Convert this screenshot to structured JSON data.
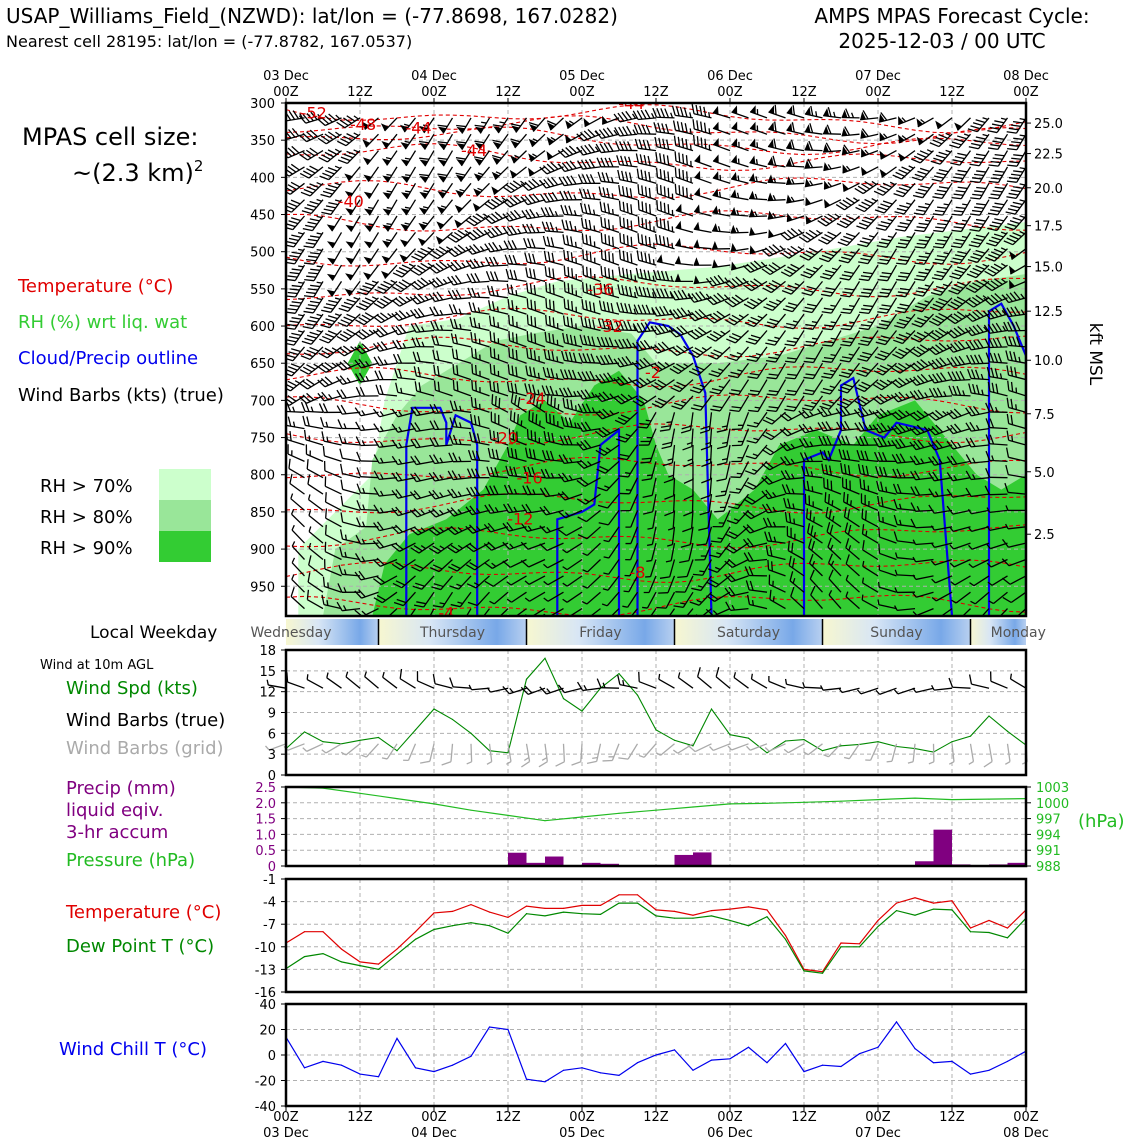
{
  "header": {
    "station_line": "USAP_Williams_Field_(NZWD): lat/lon = (-77.8698, 167.0282)",
    "cell_line": "Nearest cell 28195: lat/lon = (-77.8782, 167.0537)",
    "cycle_line1": "AMPS MPAS Forecast Cycle:",
    "cycle_line2": "2025-12-03 / 00 UTC"
  },
  "side": {
    "cell_size_label": "MPAS cell size:",
    "cell_size_value": "~(2.3 km)",
    "cell_size_exp": "2",
    "legend_temp": "Temperature (°C)",
    "legend_rh": "RH (%) wrt liq. wat",
    "legend_cloud": "Cloud/Precip outline",
    "legend_wind": "Wind Barbs (kts) (true)",
    "rh70": "RH > 70%",
    "rh80": "RH > 80%",
    "rh90": "RH > 90%",
    "local_weekday": "Local Weekday",
    "wind10m": "Wind at 10m AGL",
    "wind_spd": "Wind Spd (kts)",
    "wind_barbs_true": "Wind Barbs (true)",
    "wind_barbs_grid": "Wind Barbs (grid)",
    "precip_l1": "Precip (mm)",
    "precip_l2": "liquid eqiv.",
    "precip_l3": "3-hr accum",
    "pressure": "Pressure (hPa)",
    "temp": "Temperature (°C)",
    "dew": "Dew Point T (°C)",
    "windchill": "Wind Chill T (°C)",
    "kft_label": "kft MSL",
    "hpa_label": "(hPa)"
  },
  "colors": {
    "temp": "#e00000",
    "rh": "#22cc22",
    "cloud": "#0000ee",
    "dew": "#008800",
    "precip": "#800080",
    "pressure": "#22bb22",
    "windchill": "#0000ee",
    "rh70": "#ccffcc",
    "rh80": "#99e699",
    "rh90": "#33cc33"
  },
  "time_axis": {
    "top_dates": [
      "03 Dec",
      "",
      "04 Dec",
      "",
      "05 Dec",
      "",
      "06 Dec",
      "",
      "07 Dec",
      "",
      "08 Dec"
    ],
    "hours": [
      "00Z",
      "12Z",
      "00Z",
      "12Z",
      "00Z",
      "12Z",
      "00Z",
      "12Z",
      "00Z",
      "12Z",
      "00Z"
    ],
    "bottom_dates": [
      "03 Dec",
      "",
      "04 Dec",
      "",
      "05 Dec",
      "",
      "06 Dec",
      "",
      "07 Dec",
      "",
      "08 Dec"
    ],
    "weekdays": [
      "Wednesday",
      "Thursday",
      "Friday",
      "Saturday",
      "Sunday",
      "Monday"
    ]
  },
  "chart_data": [
    {
      "type": "contour",
      "name": "vertical cross-section",
      "x_range_hours": [
        0,
        120
      ],
      "pressure_ticks": [
        300,
        350,
        400,
        450,
        500,
        550,
        600,
        650,
        700,
        750,
        800,
        850,
        900,
        950
      ],
      "ylim_hpa": [
        300,
        990
      ],
      "kft_ticks": [
        {
          "label": "25.0",
          "p": 327
        },
        {
          "label": "22.5",
          "p": 368
        },
        {
          "label": "20.0",
          "p": 414
        },
        {
          "label": "17.5",
          "p": 465
        },
        {
          "label": "15.0",
          "p": 520
        },
        {
          "label": "12.5",
          "p": 580
        },
        {
          "label": "10.0",
          "p": 646
        },
        {
          "label": "7.5",
          "p": 718
        },
        {
          "label": "5.0",
          "p": 796
        },
        {
          "label": "2.5",
          "p": 880
        }
      ],
      "temp_labels": [
        {
          "label": "-52",
          "h": 4.5,
          "p": 313
        },
        {
          "label": "-48",
          "h": 12.5,
          "p": 328
        },
        {
          "label": "-44",
          "h": 21.5,
          "p": 333
        },
        {
          "label": "-44",
          "h": 30.5,
          "p": 363
        },
        {
          "label": "-40",
          "h": 10.5,
          "p": 432
        },
        {
          "label": "-44",
          "h": 56,
          "p": 300
        },
        {
          "label": "-36",
          "h": 51,
          "p": 550
        },
        {
          "label": "-32",
          "h": 52.5,
          "p": 600
        },
        {
          "label": "-2",
          "h": 59.5,
          "p": 662
        },
        {
          "label": "-24",
          "h": 40,
          "p": 697
        },
        {
          "label": "-20",
          "h": 35.5,
          "p": 750
        },
        {
          "label": "-16",
          "h": 39.5,
          "p": 804
        },
        {
          "label": "-12",
          "h": 38,
          "p": 859
        },
        {
          "label": "-8",
          "h": 57,
          "p": 931
        },
        {
          "label": "-4",
          "h": 26,
          "p": 985
        }
      ]
    },
    {
      "type": "line",
      "name": "wind speed 10m",
      "x_hours": [
        0,
        3,
        6,
        9,
        12,
        15,
        18,
        21,
        24,
        27,
        30,
        33,
        36,
        39,
        42,
        45,
        48,
        51,
        54,
        57,
        60,
        63,
        66,
        69,
        72,
        75,
        78,
        81,
        84,
        87,
        90,
        93,
        96,
        99,
        102,
        105,
        108,
        111,
        114,
        117,
        120
      ],
      "values": [
        3.8,
        6.2,
        4.8,
        4.5,
        5,
        5.4,
        3.5,
        6.5,
        9.5,
        8,
        6,
        3.5,
        3.2,
        13.8,
        16.8,
        11,
        9.2,
        12.5,
        14.6,
        11.5,
        6.5,
        5,
        4.2,
        9.5,
        5.8,
        5.3,
        3.2,
        4.9,
        5.1,
        3.5,
        4.2,
        4.4,
        4.8,
        4.1,
        3.8,
        3.3,
        4.8,
        5.6,
        8.5,
        6.3,
        4.3
      ],
      "ylim": [
        0,
        18
      ],
      "yticks": [
        0,
        3,
        6,
        9,
        12,
        15,
        18
      ]
    },
    {
      "type": "bar+line",
      "name": "precip and pressure",
      "precip_bars": [
        {
          "h": 37.5,
          "mm": 0.42
        },
        {
          "h": 40.5,
          "mm": 0.1
        },
        {
          "h": 43.5,
          "mm": 0.3
        },
        {
          "h": 49.5,
          "mm": 0.1
        },
        {
          "h": 52.5,
          "mm": 0.07
        },
        {
          "h": 64.5,
          "mm": 0.35
        },
        {
          "h": 67.5,
          "mm": 0.43
        },
        {
          "h": 103.5,
          "mm": 0.15
        },
        {
          "h": 106.5,
          "mm": 1.15
        },
        {
          "h": 109.5,
          "mm": 0.05
        },
        {
          "h": 115.5,
          "mm": 0.05
        },
        {
          "h": 118.5,
          "mm": 0.1
        }
      ],
      "precip_ylim": [
        0,
        2.5
      ],
      "precip_yticks": [
        "0",
        "0.5",
        "1.0",
        "1.5",
        "2.0",
        "2.5"
      ],
      "pressure_x_hours": [
        0,
        6,
        12,
        18,
        24,
        30,
        36,
        42,
        48,
        54,
        60,
        66,
        72,
        78,
        84,
        90,
        96,
        102,
        108,
        114,
        120
      ],
      "pressure_values": [
        1003,
        1002.8,
        1001.8,
        1000.8,
        999.8,
        998.6,
        997.6,
        996.6,
        997.3,
        998,
        998.6,
        999.2,
        999.8,
        999.9,
        1000.1,
        1000.3,
        1000.6,
        1000.9,
        1000.6,
        1000.7,
        1000.8
      ],
      "pressure_ylim": [
        988,
        1003
      ],
      "pressure_yticks": [
        "988",
        "991",
        "994",
        "997",
        "1000",
        "1003"
      ]
    },
    {
      "type": "line",
      "name": "temperature and dew point",
      "x_hours": [
        0,
        3,
        6,
        9,
        12,
        15,
        18,
        21,
        24,
        27,
        30,
        33,
        36,
        39,
        42,
        45,
        48,
        51,
        54,
        57,
        60,
        63,
        66,
        69,
        72,
        75,
        78,
        81,
        84,
        87,
        90,
        93,
        96,
        99,
        102,
        105,
        108,
        111,
        114,
        117,
        120
      ],
      "temperature": [
        -9.5,
        -8,
        -8,
        -10.3,
        -12,
        -12.3,
        -10.3,
        -8,
        -5.5,
        -5.3,
        -4.4,
        -5.4,
        -6.1,
        -4.6,
        -4.9,
        -4.9,
        -4.5,
        -4.5,
        -3.1,
        -3.1,
        -5.1,
        -5.3,
        -5.8,
        -5.2,
        -5,
        -4.7,
        -5.1,
        -8.5,
        -13,
        -13.3,
        -9.5,
        -9.6,
        -6.5,
        -4.2,
        -3.5,
        -4.2,
        -3.9,
        -7.5,
        -6.5,
        -7.5,
        -5.1
      ],
      "dew_point": [
        -12.9,
        -11.3,
        -10.9,
        -12,
        -12.5,
        -13,
        -11,
        -9,
        -7.7,
        -7.2,
        -6.8,
        -7.2,
        -8.2,
        -5.6,
        -5.9,
        -5.4,
        -5.6,
        -5.7,
        -4.2,
        -4.2,
        -5.9,
        -6.2,
        -6.2,
        -5.9,
        -6.5,
        -7.2,
        -6,
        -9,
        -13.2,
        -13.5,
        -10,
        -10,
        -7.3,
        -5.2,
        -5.8,
        -5,
        -5.1,
        -8,
        -8.1,
        -8.8,
        -6.2
      ],
      "ylim": [
        -16,
        -1
      ],
      "yticks": [
        -16,
        -13,
        -10,
        -7,
        -4,
        -1
      ]
    },
    {
      "type": "line",
      "name": "wind chill",
      "x_hours": [
        0,
        3,
        6,
        9,
        12,
        15,
        18,
        21,
        24,
        27,
        30,
        33,
        36,
        39,
        42,
        45,
        48,
        51,
        54,
        57,
        60,
        63,
        66,
        69,
        72,
        75,
        78,
        81,
        84,
        87,
        90,
        93,
        96,
        99,
        102,
        105,
        108,
        111,
        114,
        117,
        120
      ],
      "values": [
        14,
        -10,
        -5,
        -8,
        -15,
        -17,
        13,
        -10,
        -13,
        -8,
        -1,
        22,
        20,
        -19,
        -21,
        -12,
        -10,
        -14,
        -16,
        -6,
        0,
        4,
        -12,
        -4,
        -3,
        6,
        -6,
        9,
        -13,
        -8,
        -9,
        1,
        6,
        26,
        5,
        -6,
        -5,
        -15,
        -12,
        -5,
        3
      ],
      "ylim": [
        -40,
        40
      ],
      "yticks": [
        -40,
        -20,
        0,
        20,
        40
      ]
    }
  ]
}
